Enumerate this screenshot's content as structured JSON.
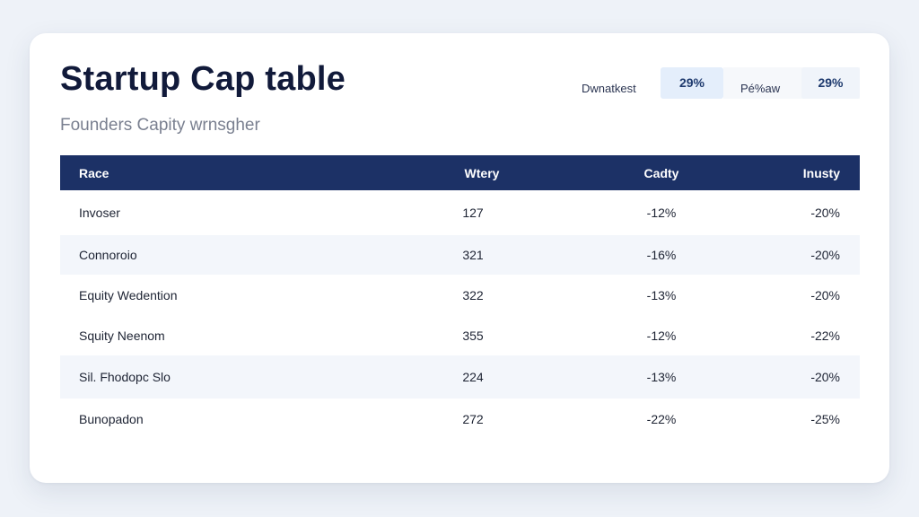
{
  "header": {
    "title": "Startup Cap table",
    "subtitle": "Founders Capity wrnsgher"
  },
  "stats": [
    {
      "label": "Dwnatkest",
      "value": "29%"
    },
    {
      "label": "Pé%aw",
      "value": "29%"
    }
  ],
  "table": {
    "columns": [
      "Race",
      "Wtery",
      "Cadty",
      "Inusty"
    ],
    "rows": [
      {
        "name": "Invoser",
        "value": "127",
        "pct1": "-12%",
        "pct2": "-20%"
      },
      {
        "name": "Connoroio",
        "value": "321",
        "pct1": "-16%",
        "pct2": "-20%"
      },
      {
        "name": "Equity Wedention",
        "value": "322",
        "pct1": "-13%",
        "pct2": "-20%"
      },
      {
        "name": "Squity Neenom",
        "value": "355",
        "pct1": "-12%",
        "pct2": "-22%"
      },
      {
        "name": "Sil. Fhodopc Slo",
        "value": "224",
        "pct1": "-13%",
        "pct2": "-20%"
      },
      {
        "name": "Bunopadon",
        "value": "272",
        "pct1": "-22%",
        "pct2": "-25%"
      }
    ]
  }
}
